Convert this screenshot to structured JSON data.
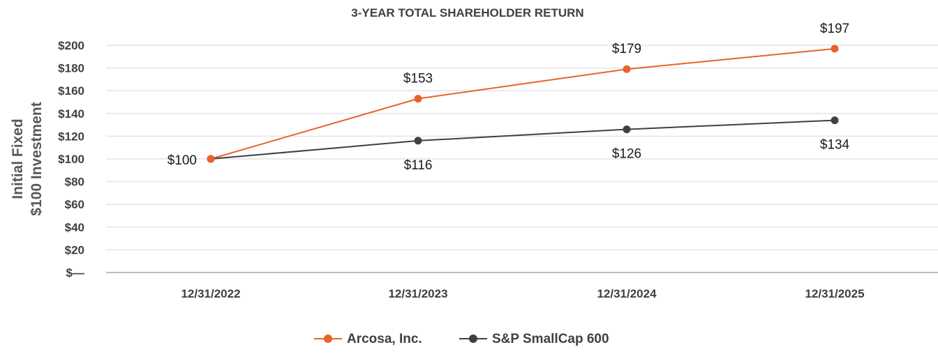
{
  "chart_data": {
    "type": "line",
    "title": "3-YEAR TOTAL SHAREHOLDER RETURN",
    "ylabel_lines": [
      "Initial Fixed",
      "$100 Investment"
    ],
    "xlabel": "",
    "categories": [
      "12/31/2022",
      "12/31/2023",
      "12/31/2024",
      "12/31/2025"
    ],
    "ylim": [
      0,
      200
    ],
    "yticks": [
      0,
      20,
      40,
      60,
      80,
      100,
      120,
      140,
      160,
      180,
      200
    ],
    "ytick_labels": [
      "$—",
      "$20",
      "$40",
      "$60",
      "$80",
      "$100",
      "$120",
      "$140",
      "$160",
      "$180",
      "$200"
    ],
    "grid": true,
    "legend": "bottom",
    "series": [
      {
        "name": "Arcosa, Inc.",
        "color": "#e8622a",
        "values": [
          100,
          153,
          179,
          197
        ],
        "labels": [
          "$100",
          "$153",
          "$179",
          "$197"
        ]
      },
      {
        "name": "S&P SmallCap 600",
        "color": "#404040",
        "values": [
          100,
          116,
          126,
          134
        ],
        "labels": [
          "",
          "$116",
          "$126",
          "$134"
        ]
      }
    ]
  }
}
